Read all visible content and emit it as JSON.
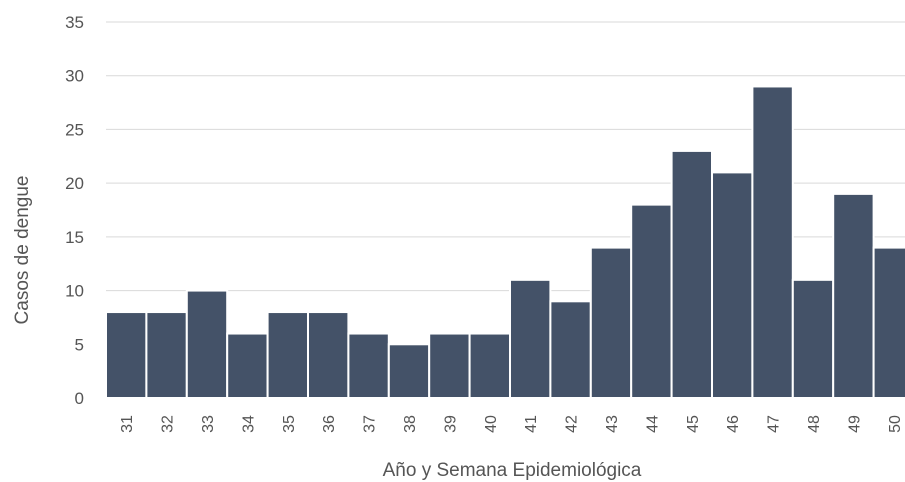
{
  "chart_data": {
    "type": "bar",
    "title": "",
    "xlabel": "Año y Semana Epidemiológica",
    "ylabel": "Casos de dengue",
    "categories": [
      "31",
      "32",
      "33",
      "34",
      "35",
      "36",
      "37",
      "38",
      "39",
      "40",
      "41",
      "42",
      "43",
      "44",
      "45",
      "46",
      "47",
      "48",
      "49",
      "50"
    ],
    "values": [
      8,
      8,
      10,
      6,
      8,
      8,
      6,
      5,
      6,
      6,
      11,
      9,
      14,
      18,
      23,
      21,
      29,
      11,
      19,
      14
    ],
    "ylim": [
      0,
      35
    ],
    "yticks": [
      "0",
      "5",
      "10",
      "15",
      "20",
      "25",
      "30",
      "35"
    ],
    "grid": true,
    "legend": "none",
    "colors": {
      "bar": "#445268",
      "bar_edge": "#ffffff",
      "grid": "#d9d9d9",
      "text": "#555555"
    }
  }
}
